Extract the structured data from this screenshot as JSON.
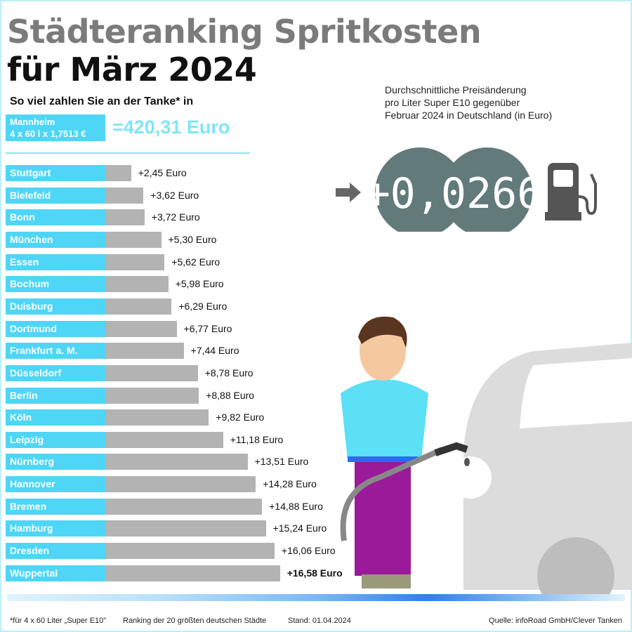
{
  "title_line1": "Städteranking Spritkosten",
  "title_line2": "für März 2024",
  "subtitle": "So viel zahlen Sie an der Tanke* in",
  "highlight": {
    "city": "Mannheim",
    "formula": "4 x 60 l x 1,7513 €",
    "total": "=420,31 Euro"
  },
  "info_text": [
    "Durchschnittliche Preisänderung",
    "pro Liter Super E10 gegenüber",
    "Februar 2024 in Deutschland (in Euro)"
  ],
  "price_change_display": "+0,0266",
  "footer": {
    "note": "*für 4 x 60 Liter „Super E10\"",
    "ranking": "Ranking der 20 größten deutschen Städte",
    "date": "Stand: 01.04.2024",
    "source": "Quelle: infoRoad GmbH/Clever Tanken"
  },
  "colors": {
    "label_bg": "#4fd5f5",
    "bar": "#b3b3b3",
    "total": "#7ee6f6",
    "gauge": "#637a7a",
    "title_grey": "#7b7b7b"
  },
  "icons": [
    "arrow-right-icon",
    "fuel-pump-icon"
  ],
  "chart_data": {
    "type": "bar",
    "orientation": "horizontal",
    "unit": "Euro",
    "xlim": [
      0,
      17
    ],
    "grid": false,
    "categories": [
      "Stuttgart",
      "Bielefeld",
      "Bonn",
      "München",
      "Essen",
      "Bochum",
      "Duisburg",
      "Dortmund",
      "Frankfurt a. M.",
      "Düsseldorf",
      "Berlin",
      "Köln",
      "Leipzig",
      "Nürnberg",
      "Hannover",
      "Bremen",
      "Hamburg",
      "Dresden",
      "Wuppertal"
    ],
    "values": [
      2.45,
      3.62,
      3.72,
      5.3,
      5.62,
      5.98,
      6.29,
      6.77,
      7.44,
      8.78,
      8.88,
      9.82,
      11.18,
      13.51,
      14.28,
      14.88,
      15.24,
      16.06,
      16.58
    ],
    "labels": [
      "+2,45 Euro",
      "+3,62 Euro",
      "+3,72 Euro",
      "+5,30 Euro",
      "+5,62 Euro",
      "+5,98 Euro",
      "+6,29 Euro",
      "+6,77 Euro",
      "+7,44 Euro",
      "+8,78 Euro",
      "+8,88 Euro",
      "+9,82 Euro",
      "+11,18 Euro",
      "+13,51 Euro",
      "+14,28 Euro",
      "+14,88 Euro",
      "+15,24 Euro",
      "+16,06 Euro",
      "+16,58 Euro"
    ]
  }
}
